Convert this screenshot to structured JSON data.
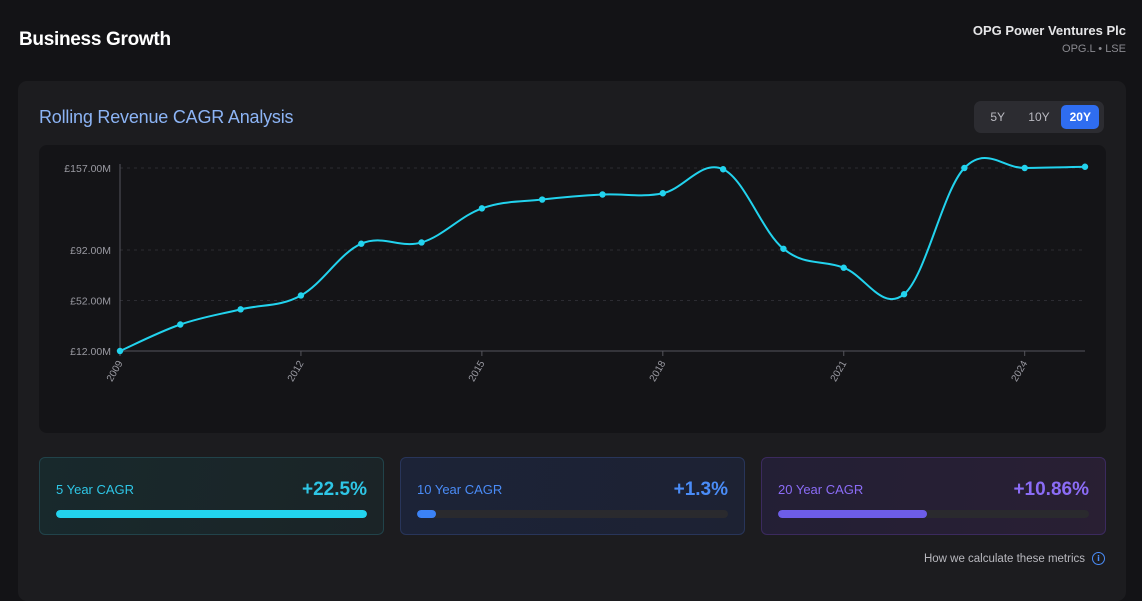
{
  "header": {
    "title": "Business Growth",
    "company_name": "OPG Power Ventures Plc",
    "ticker": "OPG.L • LSE"
  },
  "panel": {
    "title": "Rolling Revenue CAGR Analysis",
    "ranges": [
      "5Y",
      "10Y",
      "20Y"
    ],
    "active_range": "20Y"
  },
  "chart_data": {
    "type": "line",
    "title": "",
    "xlabel": "",
    "ylabel": "",
    "x": [
      2009,
      2010,
      2011,
      2012,
      2013,
      2014,
      2015,
      2016,
      2017,
      2018,
      2019,
      2020,
      2021,
      2022,
      2023,
      2024,
      2025
    ],
    "values": [
      12,
      33,
      45,
      56,
      97,
      98,
      125,
      132,
      136,
      137,
      156,
      93,
      78,
      57,
      157,
      157,
      158
    ],
    "x_ticks": [
      "2009",
      "2012",
      "2015",
      "2018",
      "2021",
      "2024"
    ],
    "y_ticks": [
      "£12.00M",
      "£52.00M",
      "£92.00M",
      "£157.00M"
    ],
    "y_tick_values": [
      12,
      52,
      92,
      157
    ],
    "ylim": [
      12,
      157
    ],
    "grid": true,
    "line_color": "#22d3ee"
  },
  "cards": [
    {
      "label": "5 Year CAGR",
      "value": "+22.5%",
      "progress": 1.0
    },
    {
      "label": "10 Year CAGR",
      "value": "+1.3%",
      "progress": 0.06
    },
    {
      "label": "20 Year CAGR",
      "value": "+10.86%",
      "progress": 0.48
    }
  ],
  "footer": {
    "link_text": "How we calculate these metrics",
    "icon": "info-icon"
  }
}
